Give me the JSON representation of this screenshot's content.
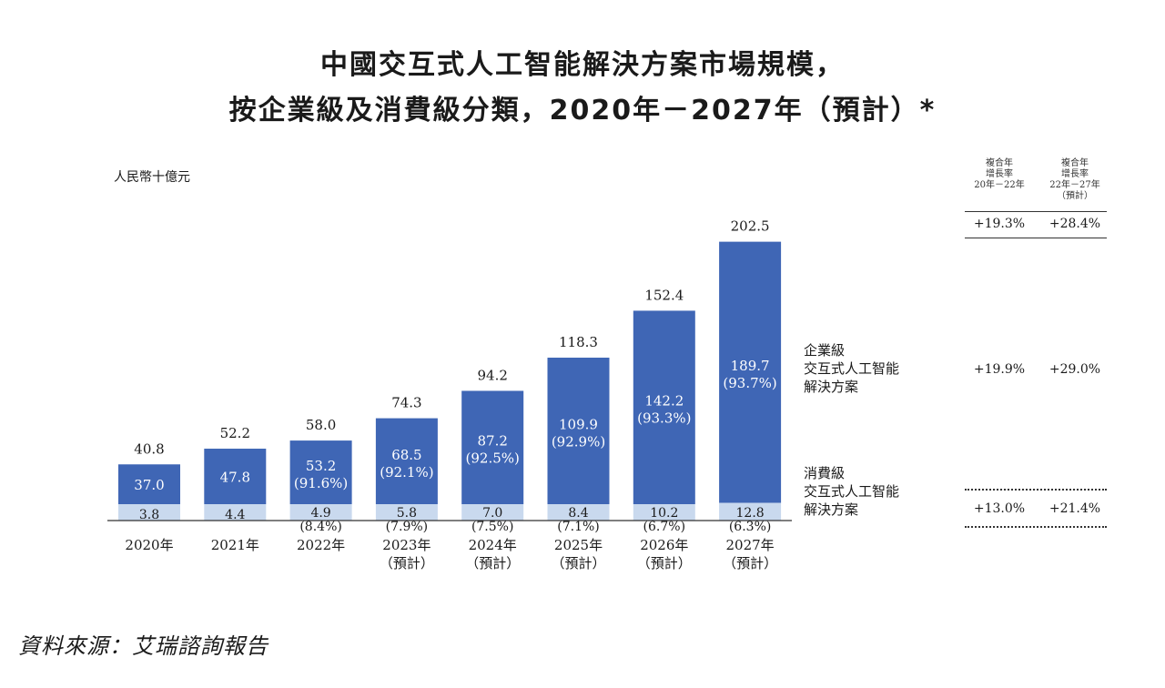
{
  "title_line1": "中國交互式人工智能解決方案市場規模，",
  "title_line2": "按企業級及消費級分類，2020年－2027年（預計）*",
  "unit": "人民幣十億元",
  "source": "資料來源：艾瑞諮詢報告",
  "colors": {
    "enterprise": "#3f66b5",
    "consumer": "#c9d9ee",
    "text_on_bar": "#ffffff"
  },
  "cagr": {
    "header_a": [
      "複合年",
      "增長率",
      "20年－22年"
    ],
    "header_b": [
      "複合年",
      "增長率",
      "22年－27年",
      "（預計）"
    ],
    "total": {
      "a": "+19.3%",
      "b": "+28.4%"
    },
    "enterprise": {
      "a": "+19.9%",
      "b": "+29.0%"
    },
    "consumer": {
      "a": "+13.0%",
      "b": "+21.4%"
    }
  },
  "legend": {
    "enterprise": [
      "企業級",
      "交互式人工智能",
      "解決方案"
    ],
    "consumer": [
      "消費級",
      "交互式人工智能",
      "解決方案"
    ]
  },
  "chart_data": {
    "type": "bar",
    "stacked": true,
    "title": "中國交互式人工智能解決方案市場規模，按企業級及消費級分類，2020年－2027年（預計）*",
    "ylabel": "人民幣十億元",
    "ylim": [
      0,
      210
    ],
    "categories": [
      "2020年",
      "2021年",
      "2022年",
      "2023年",
      "2024年",
      "2025年",
      "2026年",
      "2027年"
    ],
    "category_sub": [
      "",
      "",
      "",
      "（預計）",
      "（預計）",
      "（預計）",
      "（預計）",
      "（預計）"
    ],
    "totals": [
      "40.8",
      "52.2",
      "58.0",
      "74.3",
      "94.2",
      "118.3",
      "152.4",
      "202.5"
    ],
    "series": [
      {
        "name": "消費級交互式人工智能解決方案",
        "values": [
          3.8,
          4.4,
          4.9,
          5.8,
          7.0,
          8.4,
          10.2,
          12.8
        ],
        "labels": [
          "3.8",
          "4.4",
          "4.9",
          "5.8",
          "7.0",
          "8.4",
          "10.2",
          "12.8"
        ],
        "shares": [
          "",
          "",
          "(8.4%)",
          "(7.9%)",
          "(7.5%)",
          "(7.1%)",
          "(6.7%)",
          "(6.3%)"
        ]
      },
      {
        "name": "企業級交互式人工智能解決方案",
        "values": [
          37.0,
          47.8,
          53.2,
          68.5,
          87.2,
          109.9,
          142.2,
          189.7
        ],
        "labels": [
          "37.0",
          "47.8",
          "53.2",
          "68.5",
          "87.2",
          "109.9",
          "142.2",
          "189.7"
        ],
        "shares": [
          "",
          "",
          "(91.6%)",
          "(92.1%)",
          "(92.5%)",
          "(92.9%)",
          "(93.3%)",
          "(93.7%)"
        ]
      }
    ]
  }
}
